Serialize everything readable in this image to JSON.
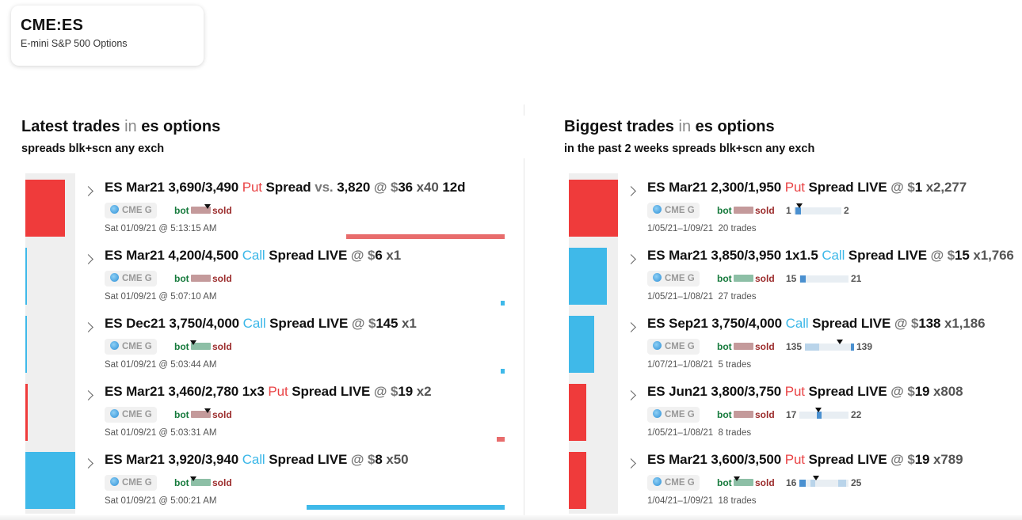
{
  "ticker": {
    "symbol": "CME:ES",
    "name": "E-mini S&P 500 Options"
  },
  "colors": {
    "put": "#e94345",
    "call": "#3bb7e8",
    "bot": "#167a3c",
    "sold": "#9b2b2b",
    "put_bar": "#ef3b3b",
    "call_bar": "#3fb9e9"
  },
  "latest": {
    "title": "Latest trades",
    "in_word": "in",
    "scope": "es options",
    "subtitle": "spreads blk+scn any exch",
    "trades": [
      {
        "contract": "ES Mar21 3,690/3,490",
        "type": "Put",
        "structure": "Spread",
        "vs_word": "vs.",
        "vs_price": "3,820",
        "at_word": "@",
        "dollar": "$",
        "price": "36",
        "size": "x40",
        "expiry": "12d",
        "exchange": "CME G",
        "bot_label": "bot",
        "sold_label": "sold",
        "timestamp": "Sat 01/09/21 @ 5:13:15 AM"
      },
      {
        "contract": "ES Mar21 4,200/4,500",
        "type": "Call",
        "structure": "Spread",
        "live": "LIVE",
        "at_word": "@",
        "dollar": "$",
        "price": "6",
        "size": "x1",
        "exchange": "CME G",
        "bot_label": "bot",
        "sold_label": "sold",
        "timestamp": "Sat 01/09/21 @ 5:07:10 AM"
      },
      {
        "contract": "ES Dec21 3,750/4,000",
        "type": "Call",
        "structure": "Spread",
        "live": "LIVE",
        "at_word": "@",
        "dollar": "$",
        "price": "145",
        "size": "x1",
        "exchange": "CME G",
        "bot_label": "bot",
        "sold_label": "sold",
        "timestamp": "Sat 01/09/21 @ 5:03:44 AM"
      },
      {
        "contract": "ES Mar21 3,460/2,780 1x3",
        "type": "Put",
        "structure": "Spread",
        "live": "LIVE",
        "at_word": "@",
        "dollar": "$",
        "price": "19",
        "size": "x2",
        "exchange": "CME G",
        "bot_label": "bot",
        "sold_label": "sold",
        "timestamp": "Sat 01/09/21 @ 5:03:31 AM"
      },
      {
        "contract": "ES Mar21 3,920/3,940",
        "type": "Call",
        "structure": "Spread",
        "live": "LIVE",
        "at_word": "@",
        "dollar": "$",
        "price": "8",
        "size": "x50",
        "exchange": "CME G",
        "bot_label": "bot",
        "sold_label": "sold",
        "timestamp": "Sat 01/09/21 @ 5:00:21 AM"
      }
    ]
  },
  "biggest": {
    "title": "Biggest trades",
    "in_word": "in",
    "scope": "es options",
    "subtitle": "in the past 2 weeks spreads blk+scn any exch",
    "trades": [
      {
        "contract": "ES Mar21 2,300/1,950",
        "type": "Put",
        "structure": "Spread",
        "live": "LIVE",
        "at_word": "@",
        "dollar": "$",
        "price": "1",
        "size": "x2,277",
        "exchange": "CME G",
        "bot_label": "bot",
        "sold_label": "sold",
        "range_lo": "1",
        "range_hi": "2",
        "dates": "1/05/21–1/09/21",
        "count": "20 trades"
      },
      {
        "contract": "ES Mar21 3,850/3,950 1x1.5",
        "type": "Call",
        "structure": "Spread",
        "live": "LIVE",
        "at_word": "@",
        "dollar": "$",
        "price": "15",
        "size": "x1,766",
        "exchange": "CME G",
        "bot_label": "bot",
        "sold_label": "sold",
        "range_lo": "15",
        "range_hi": "21",
        "dates": "1/05/21–1/08/21",
        "count": "27 trades"
      },
      {
        "contract": "ES Sep21 3,750/4,000",
        "type": "Call",
        "structure": "Spread",
        "live": "LIVE",
        "at_word": "@",
        "dollar": "$",
        "price": "138",
        "size": "x1,186",
        "exchange": "CME G",
        "bot_label": "bot",
        "sold_label": "sold",
        "range_lo": "135",
        "range_hi": "139",
        "dates": "1/07/21–1/08/21",
        "count": "5 trades"
      },
      {
        "contract": "ES Jun21 3,800/3,750",
        "type": "Put",
        "structure": "Spread",
        "live": "LIVE",
        "at_word": "@",
        "dollar": "$",
        "price": "19",
        "size": "x808",
        "exchange": "CME G",
        "bot_label": "bot",
        "sold_label": "sold",
        "range_lo": "17",
        "range_hi": "22",
        "dates": "1/05/21–1/08/21",
        "count": "8 trades"
      },
      {
        "contract": "ES Mar21 3,600/3,500",
        "type": "Put",
        "structure": "Spread",
        "live": "LIVE",
        "at_word": "@",
        "dollar": "$",
        "price": "19",
        "size": "x789",
        "exchange": "CME G",
        "bot_label": "bot",
        "sold_label": "sold",
        "range_lo": "16",
        "range_hi": "25",
        "dates": "1/04/21–1/09/21",
        "count": "18 trades"
      }
    ]
  }
}
